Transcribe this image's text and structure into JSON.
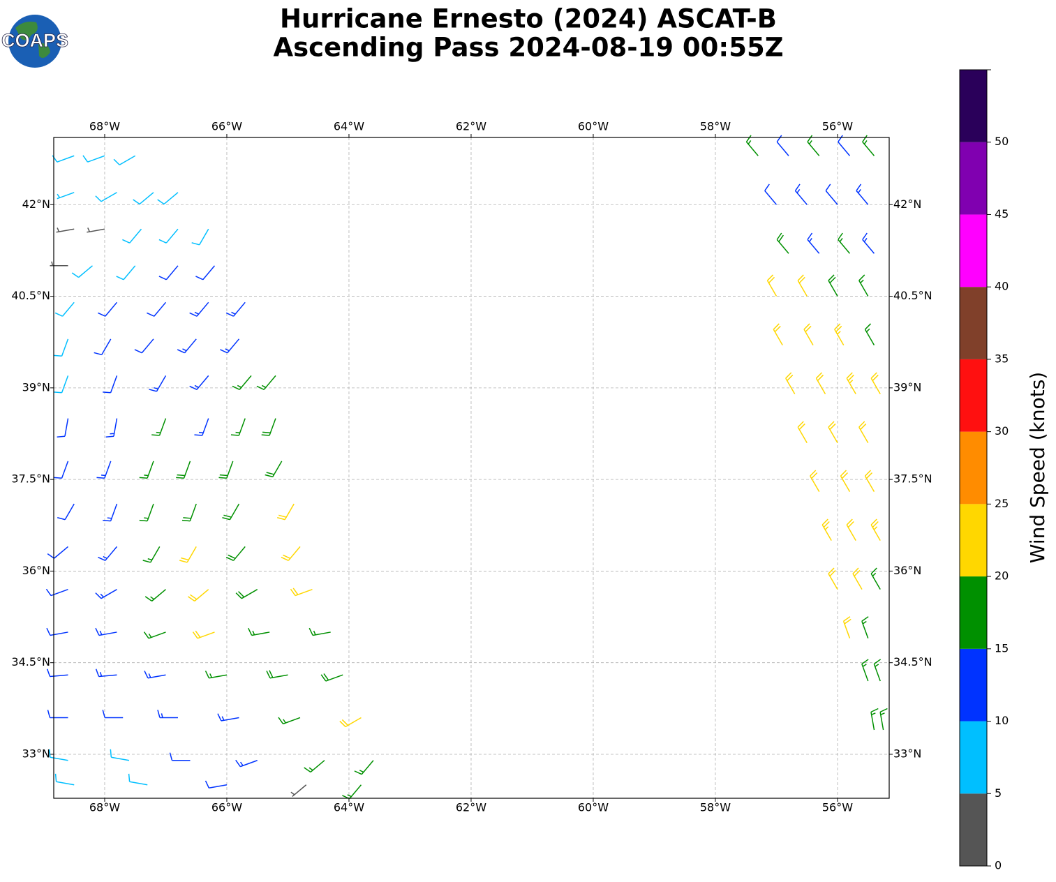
{
  "map": {
    "title": [
      "Hurricane Ernesto (2024) ASCAT-B",
      "Ascending Pass 2024-08-19 00:55Z"
    ],
    "logo": "COAPS",
    "lonlim": [
      -68.834,
      -55.154
    ],
    "latlim": [
      32.28,
      43.1
    ],
    "lonticks": [
      {
        "value": -68,
        "label": "68°W"
      },
      {
        "value": -66,
        "label": "66°W"
      },
      {
        "value": -64,
        "label": "64°W"
      },
      {
        "value": -62,
        "label": "62°W"
      },
      {
        "value": -60,
        "label": "60°W"
      },
      {
        "value": -58,
        "label": "58°W"
      },
      {
        "value": -56,
        "label": "56°W"
      }
    ],
    "latticks": [
      {
        "value": 33,
        "label": "33°N"
      },
      {
        "value": 34.5,
        "label": "34.5°N"
      },
      {
        "value": 36,
        "label": "36°N"
      },
      {
        "value": 37.5,
        "label": "37.5°N"
      },
      {
        "value": 39,
        "label": "39°N"
      },
      {
        "value": 40.5,
        "label": "40.5°N"
      },
      {
        "value": 42,
        "label": "42°N"
      }
    ],
    "grid": true,
    "colorbar": {
      "label": "Wind Speed (knots)",
      "lim": [
        0,
        55
      ],
      "ticks": [
        0,
        5,
        10,
        15,
        20,
        25,
        30,
        35,
        40,
        45,
        50
      ],
      "colors": [
        "#555555",
        "#00bfff",
        "#0033ff",
        "#009000",
        "#ffd700",
        "#ff8c00",
        "#ff1010",
        "#80402a",
        "#ff00ff",
        "#8000b0",
        "#2a005a"
      ]
    },
    "barbs": {
      "lon": [
        -68.5,
        -68,
        -67.5,
        -68.5,
        -67.8,
        -67.2,
        -66.8,
        -68.5,
        -68,
        -67.4,
        -66.8,
        -66.3,
        -68.6,
        -68.2,
        -67.5,
        -66.8,
        -66.2,
        -68.5,
        -67.8,
        -67,
        -66.3,
        -65.7,
        -68.6,
        -67.9,
        -67.2,
        -66.5,
        -65.8,
        -68.6,
        -67.8,
        -67,
        -66.3,
        -65.6,
        -65.2,
        -68.6,
        -67.8,
        -67,
        -66.3,
        -65.7,
        -65.2,
        -68.6,
        -67.9,
        -67.2,
        -66.6,
        -65.9,
        -65.1,
        -68.5,
        -67.8,
        -67.2,
        -66.5,
        -65.8,
        -64.9,
        -68.6,
        -67.8,
        -67.1,
        -66.5,
        -65.7,
        -64.8,
        -68.6,
        -67.8,
        -67,
        -66.3,
        -65.5,
        -64.6,
        -68.6,
        -67.8,
        -67,
        -66.2,
        -65.3,
        -64.3,
        -68.6,
        -67.8,
        -67,
        -66,
        -65,
        -64.1,
        -68.6,
        -67.7,
        -66.8,
        -65.8,
        -64.8,
        -63.8,
        -68.6,
        -67.6,
        -66.6,
        -65.5,
        -64.4,
        -63.6,
        -68.5,
        -67.3,
        -66,
        -64.7,
        -63.8,
        -57.3,
        -56.8,
        -56.3,
        -55.8,
        -55.4,
        -57,
        -56.5,
        -56,
        -55.5,
        -56.8,
        -56.3,
        -55.8,
        -55.4,
        -57,
        -56.5,
        -56,
        -55.5,
        -56.9,
        -56.4,
        -55.9,
        -55.4,
        -56.7,
        -56.2,
        -55.7,
        -55.3,
        -56.5,
        -56,
        -55.5,
        -56.3,
        -55.8,
        -55.4,
        -56.1,
        -55.7,
        -55.3,
        -56,
        -55.6,
        -55.3,
        -55.8,
        -55.5,
        -55.5,
        -55.3,
        -55.4,
        -55.25
      ],
      "lat": [
        42.8,
        42.8,
        42.8,
        42.2,
        42.2,
        42.2,
        42.2,
        41.6,
        41.6,
        41.6,
        41.6,
        41.6,
        41,
        41,
        41,
        41,
        41,
        40.4,
        40.4,
        40.4,
        40.4,
        40.4,
        39.8,
        39.8,
        39.8,
        39.8,
        39.8,
        39.2,
        39.2,
        39.2,
        39.2,
        39.2,
        39.2,
        38.5,
        38.5,
        38.5,
        38.5,
        38.5,
        38.5,
        37.8,
        37.8,
        37.8,
        37.8,
        37.8,
        37.8,
        37.1,
        37.1,
        37.1,
        37.1,
        37.1,
        37.1,
        36.4,
        36.4,
        36.4,
        36.4,
        36.4,
        36.4,
        35.7,
        35.7,
        35.7,
        35.7,
        35.7,
        35.7,
        35,
        35,
        35,
        35,
        35,
        35,
        34.3,
        34.3,
        34.3,
        34.3,
        34.3,
        34.3,
        33.6,
        33.6,
        33.6,
        33.6,
        33.6,
        33.6,
        32.9,
        32.9,
        32.9,
        32.9,
        32.9,
        32.9,
        32.5,
        32.5,
        32.5,
        32.5,
        32.5,
        42.8,
        42.8,
        42.8,
        42.8,
        42.8,
        42,
        42,
        42,
        42,
        41.2,
        41.2,
        41.2,
        41.2,
        40.5,
        40.5,
        40.5,
        40.5,
        39.7,
        39.7,
        39.7,
        39.7,
        38.9,
        38.9,
        38.9,
        38.9,
        38.1,
        38.1,
        38.1,
        37.3,
        37.3,
        37.3,
        36.5,
        36.5,
        36.5,
        35.7,
        35.7,
        35.7,
        34.9,
        34.9,
        34.2,
        34.2,
        33.4,
        33.4
      ],
      "speed": [
        8,
        8,
        9,
        7,
        8,
        9,
        9,
        4,
        4,
        8,
        9,
        8,
        3,
        8,
        9,
        11,
        12,
        8,
        11,
        12,
        13,
        13,
        8,
        11,
        12,
        13,
        14,
        9,
        12,
        13,
        14,
        16,
        17,
        12,
        13,
        16,
        14,
        17,
        18,
        12,
        13,
        17,
        18,
        18,
        18,
        12,
        13,
        17,
        18,
        19,
        22,
        11,
        13,
        17,
        21,
        19,
        22,
        12,
        13,
        17,
        21,
        19,
        22,
        12,
        13,
        16,
        22,
        17,
        17,
        12,
        13,
        14,
        17,
        18,
        18,
        11,
        12,
        13,
        14,
        17,
        21,
        8,
        9,
        12,
        13,
        17,
        17,
        8,
        9,
        12,
        4,
        16,
        16,
        12,
        16,
        12,
        17,
        12,
        13,
        12,
        13,
        18,
        13,
        17,
        13,
        22,
        22,
        18,
        17,
        22,
        22,
        23,
        17,
        22,
        22,
        23,
        22,
        22,
        22,
        22,
        22,
        22,
        22,
        23,
        22,
        23,
        22,
        22,
        17,
        22,
        17,
        17,
        17,
        17,
        17
      ],
      "direction": [
        250,
        250,
        240,
        250,
        240,
        230,
        230,
        260,
        260,
        220,
        220,
        210,
        270,
        230,
        220,
        220,
        220,
        220,
        220,
        220,
        220,
        220,
        200,
        210,
        220,
        220,
        220,
        200,
        200,
        210,
        220,
        220,
        220,
        190,
        190,
        200,
        200,
        200,
        200,
        200,
        200,
        200,
        200,
        200,
        210,
        210,
        200,
        200,
        200,
        210,
        210,
        230,
        220,
        210,
        210,
        220,
        220,
        250,
        240,
        230,
        230,
        240,
        250,
        260,
        260,
        250,
        250,
        260,
        260,
        265,
        265,
        260,
        260,
        260,
        250,
        270,
        270,
        270,
        260,
        250,
        240,
        280,
        280,
        270,
        250,
        230,
        220,
        280,
        280,
        260,
        230,
        220,
        320,
        320,
        320,
        320,
        320,
        320,
        320,
        320,
        320,
        320,
        320,
        320,
        320,
        330,
        330,
        330,
        330,
        330,
        330,
        330,
        330,
        330,
        330,
        330,
        330,
        330,
        330,
        330,
        330,
        330,
        330,
        330,
        330,
        330,
        330,
        330,
        330,
        340,
        340,
        340,
        340,
        350,
        350
      ]
    }
  }
}
